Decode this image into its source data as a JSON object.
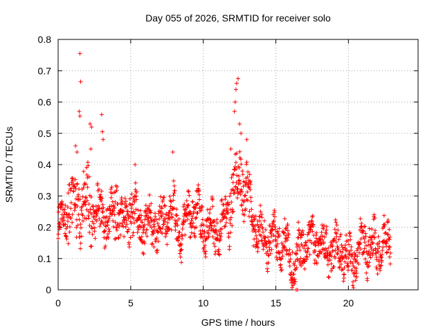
{
  "chart_data": {
    "type": "scatter",
    "title": "Day 055 of 2026, SRMTID for receiver solo",
    "xlabel": "GPS time / hours",
    "ylabel": "SRMTID / TECUs",
    "xlim": [
      0,
      24.8
    ],
    "ylim": [
      0,
      0.8
    ],
    "xticks": [
      0,
      5,
      10,
      15,
      20
    ],
    "yticks": [
      0,
      0.1,
      0.2,
      0.3,
      0.4,
      0.5,
      0.6,
      0.7,
      0.8
    ],
    "xtick_labels": [
      "0",
      "5",
      "10",
      "15",
      "20"
    ],
    "ytick_labels": [
      "0",
      "0.1",
      "0.2",
      "0.3",
      "0.4",
      "0.5",
      "0.6",
      "0.7",
      "0.8"
    ],
    "grid": true,
    "marker": "+",
    "color": "#ff0000",
    "x_range_data": [
      0,
      22.9
    ],
    "trend": [
      [
        0.0,
        0.19
      ],
      [
        0.5,
        0.24
      ],
      [
        1.0,
        0.27
      ],
      [
        1.5,
        0.26
      ],
      [
        2.0,
        0.28
      ],
      [
        2.5,
        0.24
      ],
      [
        3.0,
        0.25
      ],
      [
        3.5,
        0.21
      ],
      [
        4.0,
        0.27
      ],
      [
        4.5,
        0.19
      ],
      [
        5.0,
        0.27
      ],
      [
        5.5,
        0.22
      ],
      [
        6.0,
        0.2
      ],
      [
        6.5,
        0.21
      ],
      [
        7.0,
        0.2
      ],
      [
        7.5,
        0.25
      ],
      [
        8.0,
        0.24
      ],
      [
        8.5,
        0.17
      ],
      [
        9.0,
        0.24
      ],
      [
        9.5,
        0.25
      ],
      [
        10.0,
        0.2
      ],
      [
        10.5,
        0.19
      ],
      [
        11.0,
        0.19
      ],
      [
        11.5,
        0.22
      ],
      [
        12.0,
        0.3
      ],
      [
        12.5,
        0.36
      ],
      [
        13.0,
        0.3
      ],
      [
        13.5,
        0.22
      ],
      [
        14.0,
        0.17
      ],
      [
        14.5,
        0.16
      ],
      [
        15.0,
        0.17
      ],
      [
        15.5,
        0.15
      ],
      [
        16.0,
        0.12
      ],
      [
        16.3,
        0.06
      ],
      [
        16.6,
        0.12
      ],
      [
        17.0,
        0.15
      ],
      [
        17.5,
        0.16
      ],
      [
        18.0,
        0.15
      ],
      [
        18.5,
        0.13
      ],
      [
        19.0,
        0.12
      ],
      [
        19.5,
        0.14
      ],
      [
        20.0,
        0.09
      ],
      [
        20.5,
        0.1
      ],
      [
        21.0,
        0.15
      ],
      [
        21.5,
        0.14
      ],
      [
        22.0,
        0.13
      ],
      [
        22.5,
        0.16
      ],
      [
        22.9,
        0.15
      ]
    ],
    "outliers": [
      [
        1.5,
        0.755
      ],
      [
        1.55,
        0.665
      ],
      [
        1.45,
        0.57
      ],
      [
        1.5,
        0.555
      ],
      [
        2.2,
        0.53
      ],
      [
        2.3,
        0.52
      ],
      [
        3.0,
        0.56
      ],
      [
        3.05,
        0.505
      ],
      [
        3.1,
        0.48
      ],
      [
        1.2,
        0.46
      ],
      [
        1.3,
        0.44
      ],
      [
        2.25,
        0.45
      ],
      [
        5.3,
        0.4
      ],
      [
        7.9,
        0.44
      ],
      [
        12.4,
        0.675
      ],
      [
        12.3,
        0.66
      ],
      [
        12.25,
        0.64
      ],
      [
        12.2,
        0.6
      ],
      [
        12.15,
        0.57
      ],
      [
        12.5,
        0.53
      ],
      [
        12.6,
        0.5
      ],
      [
        13.0,
        0.48
      ],
      [
        11.9,
        0.45
      ],
      [
        16.4,
        0.0
      ],
      [
        16.5,
        0.0
      ],
      [
        20.5,
        0.03
      ],
      [
        21.3,
        0.03
      ]
    ]
  }
}
